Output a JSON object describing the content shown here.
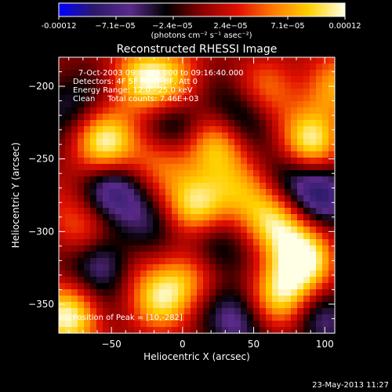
{
  "chart_data": {
    "type": "heatmap",
    "title": "Reconstructed RHESSI Image",
    "xlabel": "Heliocentric X (arcsec)",
    "ylabel": "Heliocentric Y (arcsec)",
    "xlim": [
      -87,
      107
    ],
    "ylim": [
      -370,
      -180
    ],
    "xticks": [
      -50,
      0,
      50,
      100
    ],
    "yticks": [
      -200,
      -250,
      -300,
      -350
    ],
    "colorbar": {
      "min": -0.00012,
      "max": 0.00012,
      "tick_labels": [
        "-0.00012",
        "−7.1e−05",
        "−2.4e−05",
        "2.4e−05",
        "7.1e−05",
        "0.00012"
      ],
      "units_label": "(photons cm⁻² s⁻¹ asec⁻²)",
      "stops": [
        "#0000ff",
        "#2c1a6a",
        "#5a2a8a",
        "#000000",
        "#8a0000",
        "#e01000",
        "#ff7a00",
        "#ffd000",
        "#ffffe6"
      ]
    },
    "annotations": [
      "7-Oct-2003 09:09:20.000 to 09:16:40.000",
      "Detectors: 4F 5F 6F 7F 8F, Att 0",
      "Energy Range: 12.0 - 25.0 keV",
      "Clean     Total counts: 7.46E+03"
    ],
    "peak_label": "Position of Peak = [10,-282]",
    "blobs": [
      {
        "x": 10,
        "y": -282,
        "v": 1.0
      },
      {
        "x": -55,
        "y": -240,
        "v": 0.9
      },
      {
        "x": 90,
        "y": -240,
        "v": 0.9
      },
      {
        "x": 65,
        "y": -295,
        "v": 0.85
      },
      {
        "x": 85,
        "y": -320,
        "v": 0.9
      },
      {
        "x": 70,
        "y": -345,
        "v": 0.85
      },
      {
        "x": -80,
        "y": -360,
        "v": 0.9
      },
      {
        "x": -30,
        "y": -195,
        "v": 0.75
      },
      {
        "x": -15,
        "y": -248,
        "v": 0.6
      },
      {
        "x": 25,
        "y": -240,
        "v": 0.7
      },
      {
        "x": -5,
        "y": -195,
        "v": 0.5
      },
      {
        "x": 60,
        "y": -205,
        "v": 0.45
      },
      {
        "x": 40,
        "y": -270,
        "v": 0.45
      },
      {
        "x": -70,
        "y": -300,
        "v": 0.55
      },
      {
        "x": -15,
        "y": -345,
        "v": 0.7
      },
      {
        "x": 5,
        "y": -330,
        "v": 0.5
      },
      {
        "x": -40,
        "y": -320,
        "v": 0.35
      },
      {
        "x": 105,
        "y": -200,
        "v": 0.6
      },
      {
        "x": -5,
        "y": -230,
        "v": -0.55
      },
      {
        "x": -50,
        "y": -270,
        "v": -0.6
      },
      {
        "x": -55,
        "y": -320,
        "v": -0.9
      },
      {
        "x": 20,
        "y": -310,
        "v": -0.6
      },
      {
        "x": 40,
        "y": -220,
        "v": -0.55
      },
      {
        "x": 40,
        "y": -360,
        "v": -0.6
      },
      {
        "x": 100,
        "y": -275,
        "v": -0.7
      },
      {
        "x": 100,
        "y": -360,
        "v": -0.5
      },
      {
        "x": -80,
        "y": -210,
        "v": -0.4
      },
      {
        "x": 75,
        "y": -260,
        "v": -0.45
      },
      {
        "x": -25,
        "y": -290,
        "v": -0.45
      }
    ]
  },
  "footer": {
    "timestamp": "23-May-2013 11:27"
  }
}
